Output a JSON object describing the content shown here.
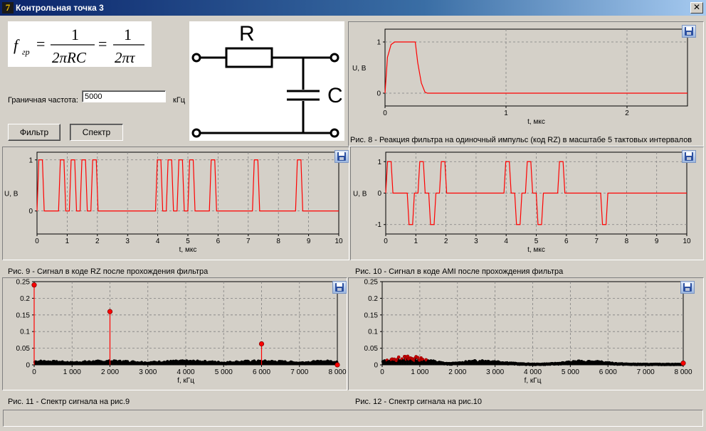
{
  "window": {
    "title": "Контрольная точка 3",
    "close_glyph": "✕"
  },
  "formula": {
    "lhs": "f",
    "lhs_sub": "гр",
    "num1": "1",
    "den1": "2πRC",
    "num2": "1",
    "den2": "2πτ"
  },
  "circuit": {
    "r_label": "R",
    "c_label": "C"
  },
  "controls": {
    "cutoff_label": "Граничная частота:",
    "cutoff_value": "5000",
    "cutoff_unit": "кГц",
    "filter_button": "Фильтр",
    "spectrum_button": "Спектр"
  },
  "plots": {
    "fig8": {
      "ylabel": "U, В",
      "xlabel": "t, мкс",
      "caption": "Рис. 8 - Реакция фильтра на одиночный импульс (код RZ) в масштабе 5 тактовых интервалов"
    },
    "fig9": {
      "ylabel": "U, В",
      "xlabel": "t, мкс",
      "caption": "Рис. 9 - Сигнал в коде RZ после прохождения фильтра"
    },
    "fig10": {
      "ylabel": "U, В",
      "xlabel": "t, мкс",
      "caption": "Рис. 10 - Сигнал в коде AMI после прохождения фильтра"
    },
    "fig11": {
      "xlabel": "f, кГц",
      "caption": "Рис. 11 - Спектр сигнала на рис.9"
    },
    "fig12": {
      "xlabel": "f, кГц",
      "caption": "Рис. 12 - Спектр сигнала на рис.10"
    }
  },
  "chart_data": [
    {
      "id": "fig8",
      "type": "line",
      "xlim": [
        0,
        2.5
      ],
      "ylim": [
        -0.25,
        1.25
      ],
      "xticks": [
        "0",
        "1",
        "2"
      ],
      "xtick_values": [
        0,
        1,
        2
      ],
      "yticks": [
        "0",
        "1"
      ],
      "ytick_values": [
        0,
        1
      ],
      "series": [
        {
          "color": "#ff0000",
          "x": [
            0,
            0.02,
            0.05,
            0.08,
            0.1,
            0.25,
            0.27,
            0.3,
            0.33,
            0.35,
            2.5
          ],
          "y": [
            0,
            0.7,
            0.95,
            1.0,
            1.0,
            1.0,
            0.6,
            0.2,
            0.02,
            0,
            0
          ]
        }
      ],
      "grid": true
    },
    {
      "id": "fig9",
      "type": "line",
      "xlim": [
        0,
        10
      ],
      "ylim": [
        -0.45,
        1.15
      ],
      "xticks": [
        "0",
        "1",
        "2",
        "3",
        "4",
        "5",
        "6",
        "7",
        "8",
        "9",
        "10"
      ],
      "yticks": [
        "0",
        "1"
      ],
      "ytick_values": [
        0,
        1
      ],
      "bits": [
        1,
        0,
        1,
        1,
        1,
        1,
        0,
        0,
        0,
        0,
        0,
        1,
        1,
        1,
        1,
        0,
        1,
        0,
        0,
        0,
        1,
        0,
        0,
        0,
        1,
        0,
        0,
        0
      ],
      "bit_period": 0.357,
      "pulse_fraction": 0.5,
      "edge": 0.06,
      "grid": true
    },
    {
      "id": "fig10",
      "type": "line",
      "xlim": [
        0,
        10
      ],
      "ylim": [
        -1.3,
        1.3
      ],
      "xticks": [
        "0",
        "1",
        "2",
        "3",
        "4",
        "5",
        "6",
        "7",
        "8",
        "9",
        "10"
      ],
      "yticks": [
        "1",
        "0",
        "-1"
      ],
      "ytick_values": [
        1,
        0,
        -1
      ],
      "levels": [
        1,
        0,
        -1,
        1,
        -1,
        1,
        0,
        0,
        0,
        0,
        0,
        1,
        -1,
        1,
        -1,
        0,
        1,
        0,
        0,
        0,
        -1,
        0,
        0,
        0,
        0,
        0,
        0,
        0
      ],
      "bit_period": 0.357,
      "pulse_fraction": 0.5,
      "edge": 0.06,
      "grid": true
    },
    {
      "id": "fig11",
      "type": "scatter",
      "xlim": [
        0,
        8000
      ],
      "ylim": [
        0,
        0.25
      ],
      "xticks": [
        "0",
        "1 000",
        "2 000",
        "3 000",
        "4 000",
        "5 000",
        "6 000",
        "7 000",
        "8 000"
      ],
      "yticks": [
        "0",
        "0.05",
        "0.1",
        "0.15",
        "0.2",
        "0.25"
      ],
      "stems": [
        {
          "x": 0,
          "y": 0.24
        },
        {
          "x": 2000,
          "y": 0.16
        },
        {
          "x": 6000,
          "y": 0.063
        },
        {
          "x": 8000,
          "y": 0.0
        }
      ],
      "noise_floor": 0.012,
      "grid": true
    },
    {
      "id": "fig12",
      "type": "scatter",
      "xlim": [
        0,
        8000
      ],
      "ylim": [
        0,
        0.25
      ],
      "xticks": [
        "0",
        "1 000",
        "2 000",
        "3 000",
        "4 000",
        "5 000",
        "6 000",
        "7 000",
        "8 000"
      ],
      "yticks": [
        "0",
        "0.05",
        "0.1",
        "0.15",
        "0.2",
        "0.25"
      ],
      "stems": [
        {
          "x": 8000,
          "y": 0.005
        }
      ],
      "envelope_peaks": [
        {
          "x": 700,
          "y": 0.025
        },
        {
          "x": 2700,
          "y": 0.012
        },
        {
          "x": 5400,
          "y": 0.01
        }
      ],
      "grid": true
    }
  ]
}
